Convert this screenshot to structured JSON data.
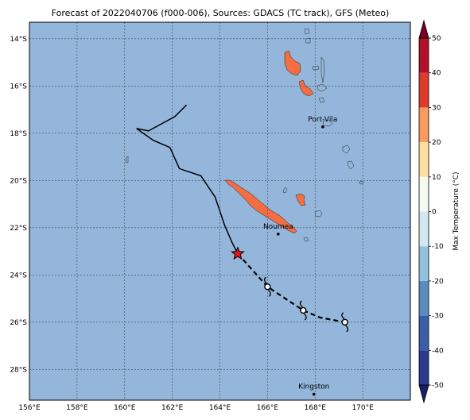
{
  "title": "Forecast of 2022040706 (f000-006), Sources: GDACS (TC track), GFS (Meteo)",
  "map": {
    "lon_range": [
      156,
      172
    ],
    "lat_range": [
      -29.3,
      -13.3
    ],
    "lon_ticks": [
      {
        "lon": 156,
        "label": "156°E"
      },
      {
        "lon": 158,
        "label": "158°E"
      },
      {
        "lon": 160,
        "label": "160°E"
      },
      {
        "lon": 162,
        "label": "162°E"
      },
      {
        "lon": 164,
        "label": "164°E"
      },
      {
        "lon": 166,
        "label": "166°E"
      },
      {
        "lon": 168,
        "label": "168°E"
      },
      {
        "lon": 170,
        "label": "170°E"
      }
    ],
    "lat_ticks": [
      {
        "lat": -14,
        "label": "14°S"
      },
      {
        "lat": -16,
        "label": "16°S"
      },
      {
        "lat": -18,
        "label": "18°S"
      },
      {
        "lat": -20,
        "label": "20°S"
      },
      {
        "lat": -22,
        "label": "22°S"
      },
      {
        "lat": -24,
        "label": "24°S"
      },
      {
        "lat": -26,
        "label": "26°S"
      },
      {
        "lat": -28,
        "label": "28°S"
      }
    ],
    "grid": true,
    "ocean_color": "#93b6da",
    "land_color": "#f46d43"
  },
  "cities": [
    {
      "name": "Port-Vila",
      "lon": 168.32,
      "lat": -17.73
    },
    {
      "name": "Noumea",
      "lon": 166.45,
      "lat": -22.27
    },
    {
      "name": "Kingston",
      "lon": 167.95,
      "lat": -29.05
    }
  ],
  "tc_track": {
    "past": [
      [
        162.6,
        -16.8
      ],
      [
        162.1,
        -17.3
      ],
      [
        161.0,
        -17.9
      ],
      [
        160.5,
        -17.8
      ],
      [
        161.2,
        -18.3
      ],
      [
        161.9,
        -18.6
      ],
      [
        162.3,
        -19.5
      ],
      [
        163.2,
        -19.8
      ],
      [
        163.8,
        -20.7
      ],
      [
        164.2,
        -21.9
      ],
      [
        164.5,
        -22.6
      ],
      [
        164.75,
        -23.1
      ]
    ],
    "current": [
      164.75,
      -23.1
    ],
    "forecast": [
      [
        164.75,
        -23.1
      ],
      [
        166.0,
        -24.5
      ],
      [
        167.5,
        -25.5
      ],
      [
        168.2,
        -25.8
      ],
      [
        169.25,
        -26.0
      ]
    ],
    "forecast_points": [
      [
        166.0,
        -24.5
      ],
      [
        167.5,
        -25.5
      ],
      [
        169.25,
        -26.0
      ]
    ]
  },
  "colorbar": {
    "label": "Max Temperature (°C)",
    "min": -55,
    "max": 55,
    "ticks": [
      -50,
      -40,
      -30,
      -20,
      -10,
      0,
      10,
      20,
      30,
      40,
      50
    ],
    "bands": [
      {
        "from": -50,
        "to": -40,
        "color": "#2b3a8f"
      },
      {
        "from": -40,
        "to": -30,
        "color": "#3a5fa8"
      },
      {
        "from": -30,
        "to": -20,
        "color": "#5a8cc0"
      },
      {
        "from": -20,
        "to": -10,
        "color": "#93c0dc"
      },
      {
        "from": -10,
        "to": 0,
        "color": "#d2e8f1"
      },
      {
        "from": 0,
        "to": 10,
        "color": "#f6f9ef"
      },
      {
        "from": 10,
        "to": 20,
        "color": "#fde0a0"
      },
      {
        "from": 20,
        "to": 30,
        "color": "#f99a5e"
      },
      {
        "from": 30,
        "to": 40,
        "color": "#dd3b2b"
      },
      {
        "from": 40,
        "to": 50,
        "color": "#b20f2b"
      }
    ],
    "extend_low_color": "#1b1f6b",
    "extend_high_color": "#7a0026"
  }
}
